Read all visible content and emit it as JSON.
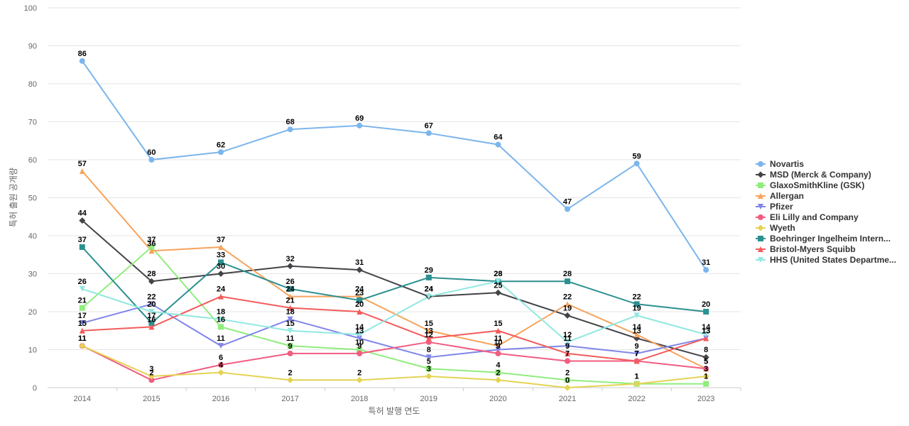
{
  "chart_data": {
    "type": "line",
    "xlabel": "특허 발행 연도",
    "ylabel": "특허 출원 공개량",
    "ylim": [
      0,
      100
    ],
    "yticks": [
      0,
      10,
      20,
      30,
      40,
      50,
      60,
      70,
      80,
      90,
      100
    ],
    "grid": true,
    "legend_position": "right",
    "x": [
      "2014",
      "2015",
      "2016",
      "2017",
      "2018",
      "2019",
      "2020",
      "2021",
      "2022",
      "2023"
    ],
    "labeled_series": [
      0,
      1,
      2,
      3,
      4,
      5,
      6,
      7,
      8,
      9
    ],
    "series": [
      {
        "name": "Novartis",
        "color": "#7cb5ec",
        "marker": "circle",
        "values": [
          86,
          60,
          62,
          68,
          69,
          67,
          64,
          47,
          59,
          31
        ]
      },
      {
        "name": "MSD (Merck & Company)",
        "color": "#434348",
        "marker": "diamond",
        "values": [
          44,
          28,
          30,
          32,
          31,
          24,
          25,
          19,
          13,
          8
        ]
      },
      {
        "name": "GlaxoSmithKline (GSK)",
        "color": "#90ed7d",
        "marker": "square",
        "values": [
          21,
          37,
          16,
          11,
          10,
          5,
          4,
          2,
          1,
          1
        ]
      },
      {
        "name": "Allergan",
        "color": "#f7a35c",
        "marker": "triangle",
        "values": [
          57,
          36,
          37,
          24,
          24,
          15,
          11,
          22,
          14,
          5
        ]
      },
      {
        "name": "Pfizer",
        "color": "#8085e9",
        "marker": "triangle-down",
        "values": [
          17,
          22,
          11,
          18,
          13,
          8,
          10,
          11,
          9,
          13
        ]
      },
      {
        "name": "Eli Lilly and Company",
        "color": "#f15c80",
        "marker": "circle",
        "values": [
          11,
          2,
          6,
          9,
          9,
          12,
          9,
          7,
          7,
          5
        ]
      },
      {
        "name": "Wyeth",
        "color": "#e4d354",
        "marker": "diamond",
        "values": [
          11,
          3,
          4,
          2,
          2,
          3,
          2,
          0,
          1,
          3
        ]
      },
      {
        "name": "Boehringer Ingelheim Intern...",
        "color": "#2b908f",
        "marker": "square",
        "values": [
          37,
          17,
          33,
          26,
          23,
          29,
          28,
          28,
          22,
          20
        ]
      },
      {
        "name": "Bristol-Myers Squibb",
        "color": "#f45b5b",
        "marker": "triangle",
        "values": [
          15,
          16,
          24,
          21,
          20,
          13,
          15,
          9,
          7,
          13
        ]
      },
      {
        "name": "HHS (United States Departme...",
        "color": "#91e8e1",
        "marker": "triangle-down",
        "values": [
          26,
          20,
          18,
          15,
          14,
          24,
          28,
          12,
          19,
          14
        ]
      }
    ]
  }
}
